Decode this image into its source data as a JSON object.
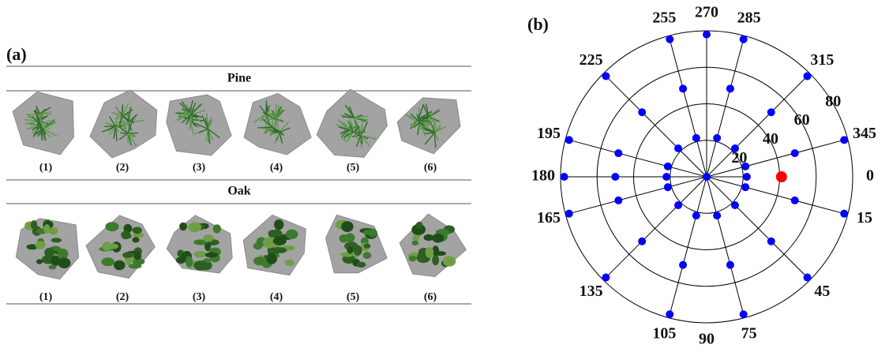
{
  "panel_a": {
    "label": "(a)",
    "groups": [
      {
        "title": "Pine",
        "items": [
          "(1)",
          "(2)",
          "(3)",
          "(4)",
          "(5)",
          "(6)"
        ]
      },
      {
        "title": "Oak",
        "items": [
          "(1)",
          "(2)",
          "(3)",
          "(4)",
          "(5)",
          "(6)"
        ]
      }
    ]
  },
  "chart_data": {
    "type": "polar-scatter",
    "panel_label": "(b)",
    "rlim": [
      0,
      80
    ],
    "rticks": [
      20,
      40,
      60,
      80
    ],
    "thetaticks": [
      0,
      15,
      45,
      75,
      90,
      105,
      135,
      165,
      180,
      195,
      225,
      255,
      270,
      285,
      315,
      345
    ],
    "series": [
      {
        "color": "#0000ff",
        "theta": [
          0,
          0,
          15,
          45,
          75,
          105,
          135,
          165,
          180,
          195,
          225,
          255,
          285,
          315,
          345,
          15,
          45,
          75,
          105,
          135,
          165,
          180,
          195,
          225,
          255,
          285,
          315,
          345,
          15,
          45,
          75,
          105,
          135,
          165,
          180,
          195,
          225,
          255,
          270,
          285,
          315,
          345
        ],
        "r": [
          0,
          22,
          22,
          22,
          22,
          22,
          22,
          22,
          22,
          22,
          22,
          22,
          22,
          22,
          22,
          50,
          50,
          50,
          50,
          50,
          50,
          50,
          50,
          50,
          50,
          50,
          50,
          50,
          78,
          78,
          78,
          78,
          78,
          78,
          78,
          78,
          78,
          78,
          78,
          78,
          78,
          78
        ]
      },
      {
        "color": "#ff0000",
        "theta": [
          0
        ],
        "r": [
          41
        ]
      }
    ]
  }
}
